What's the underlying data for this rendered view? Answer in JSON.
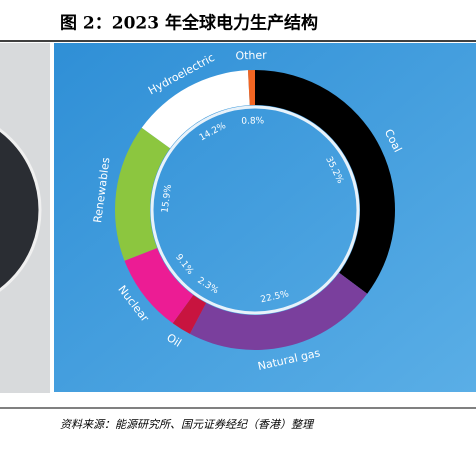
{
  "chart_data": {
    "type": "donut",
    "title": "图 2：2023 年全球电力生产结构",
    "source": "资料来源：能源研究所、国元证券经纪（香港）整理",
    "categories": [
      "Coal",
      "Natural gas",
      "Oil",
      "Nuclear",
      "Renewables",
      "Hydroelectric",
      "Other"
    ],
    "values": [
      35.2,
      22.5,
      2.3,
      9.1,
      15.9,
      14.2,
      0.8
    ],
    "value_labels": [
      "35.2%",
      "22.5%",
      "2.3%",
      "9.1%",
      "15.9%",
      "14.2%",
      "0.8%"
    ],
    "colors": [
      "#000000",
      "#7a3f9d",
      "#c8143f",
      "#ec1c94",
      "#8cc63f",
      "#ffffff",
      "#f26522"
    ]
  }
}
